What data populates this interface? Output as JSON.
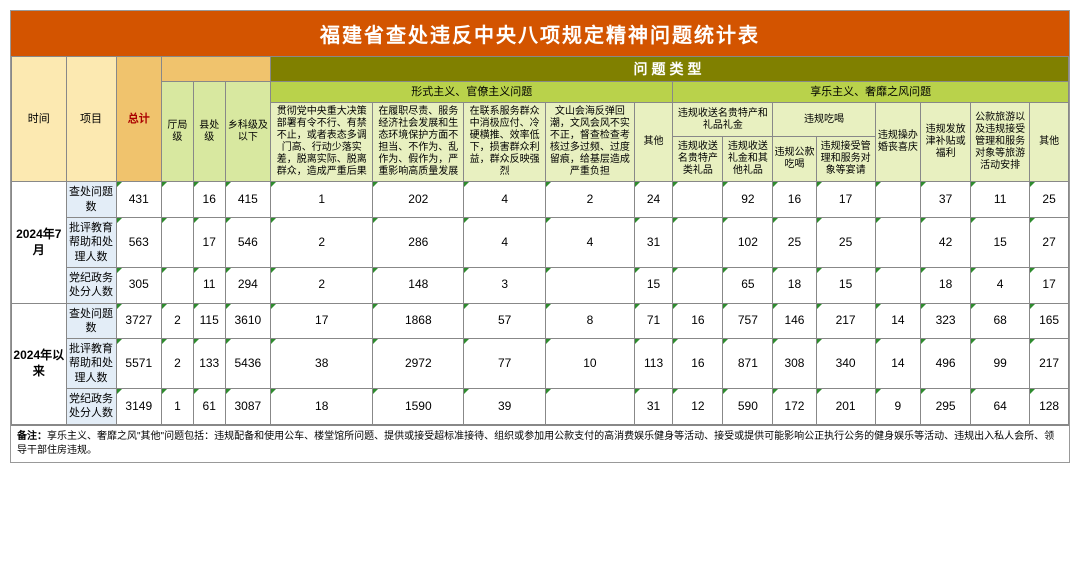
{
  "title": "福建省查处违反中央八项规定精神问题统计表",
  "headers": {
    "time": "时间",
    "item": "项目",
    "total": "总计",
    "tingju": "厅局级",
    "xianchu": "县处级",
    "xiangke": "乡科级及以下",
    "wenti_type": "问题类型",
    "formal": "形式主义、官僚主义问题",
    "hedon": "享乐主义、奢靡之风问题",
    "c1": "贯彻党中央重大决策部署有令不行、有禁不止，或者表态多调门高、行动少落实差，脱离实际、脱离群众，造成严重后果",
    "c2": "在履职尽责、服务经济社会发展和生态环境保护方面不担当、不作为、乱作为、假作为，严重影响高质量发展",
    "c3": "在联系服务群众中消极应付、冷硬横推、效率低下，损害群众利益，群众反映强烈",
    "c4": "文山会海反弹回潮，文风会风不实不正，督查检查考核过多过频、过度留痕，给基层造成严重负担",
    "c5": "其他",
    "g1_t": "违规收送名贵特产和礼品礼金",
    "g1a": "违规收送名贵特产类礼品",
    "g1b": "违规收送礼金和其他礼品",
    "g2_t": "违规吃喝",
    "g2a": "违规公款吃喝",
    "g2b": "违规接受管理和服务对象等宴请",
    "g3": "违规操办婚丧喜庆",
    "g4": "违规发放津补贴或福利",
    "g5": "公款旅游以及违规接受管理和服务对象等旅游活动安排",
    "g6": "其他"
  },
  "periods": [
    {
      "label": "2024年7月",
      "rows": [
        {
          "name": "查处问题数",
          "v": [
            "431",
            "",
            "16",
            "415",
            "1",
            "202",
            "4",
            "2",
            "24",
            "",
            "92",
            "16",
            "17",
            "",
            "37",
            "11",
            "25"
          ]
        },
        {
          "name": "批评教育帮助和处理人数",
          "v": [
            "563",
            "",
            "17",
            "546",
            "2",
            "286",
            "4",
            "4",
            "31",
            "",
            "102",
            "25",
            "25",
            "",
            "42",
            "15",
            "27"
          ]
        },
        {
          "name": "党纪政务处分人数",
          "v": [
            "305",
            "",
            "11",
            "294",
            "2",
            "148",
            "3",
            "",
            "15",
            "",
            "65",
            "18",
            "15",
            "",
            "18",
            "4",
            "17"
          ]
        }
      ]
    },
    {
      "label": "2024年以来",
      "rows": [
        {
          "name": "查处问题数",
          "v": [
            "3727",
            "2",
            "115",
            "3610",
            "17",
            "1868",
            "57",
            "8",
            "71",
            "16",
            "757",
            "146",
            "217",
            "14",
            "323",
            "68",
            "165"
          ]
        },
        {
          "name": "批评教育帮助和处理人数",
          "v": [
            "5571",
            "2",
            "133",
            "5436",
            "38",
            "2972",
            "77",
            "10",
            "113",
            "16",
            "871",
            "308",
            "340",
            "14",
            "496",
            "99",
            "217"
          ]
        },
        {
          "name": "党纪政务处分人数",
          "v": [
            "3149",
            "1",
            "61",
            "3087",
            "18",
            "1590",
            "39",
            "",
            "31",
            "12",
            "590",
            "172",
            "201",
            "9",
            "295",
            "64",
            "128"
          ]
        }
      ]
    }
  ],
  "note_label": "备注：",
  "note": "享乐主义、奢靡之风\"其他\"问题包括：违规配备和使用公车、楼堂馆所问题、提供或接受超标准接待、组织或参加用公款支付的高消费娱乐健身等活动、接受或提供可能影响公正执行公务的健身娱乐等活动、违规出入私人会所、领导干部住房违规。"
}
